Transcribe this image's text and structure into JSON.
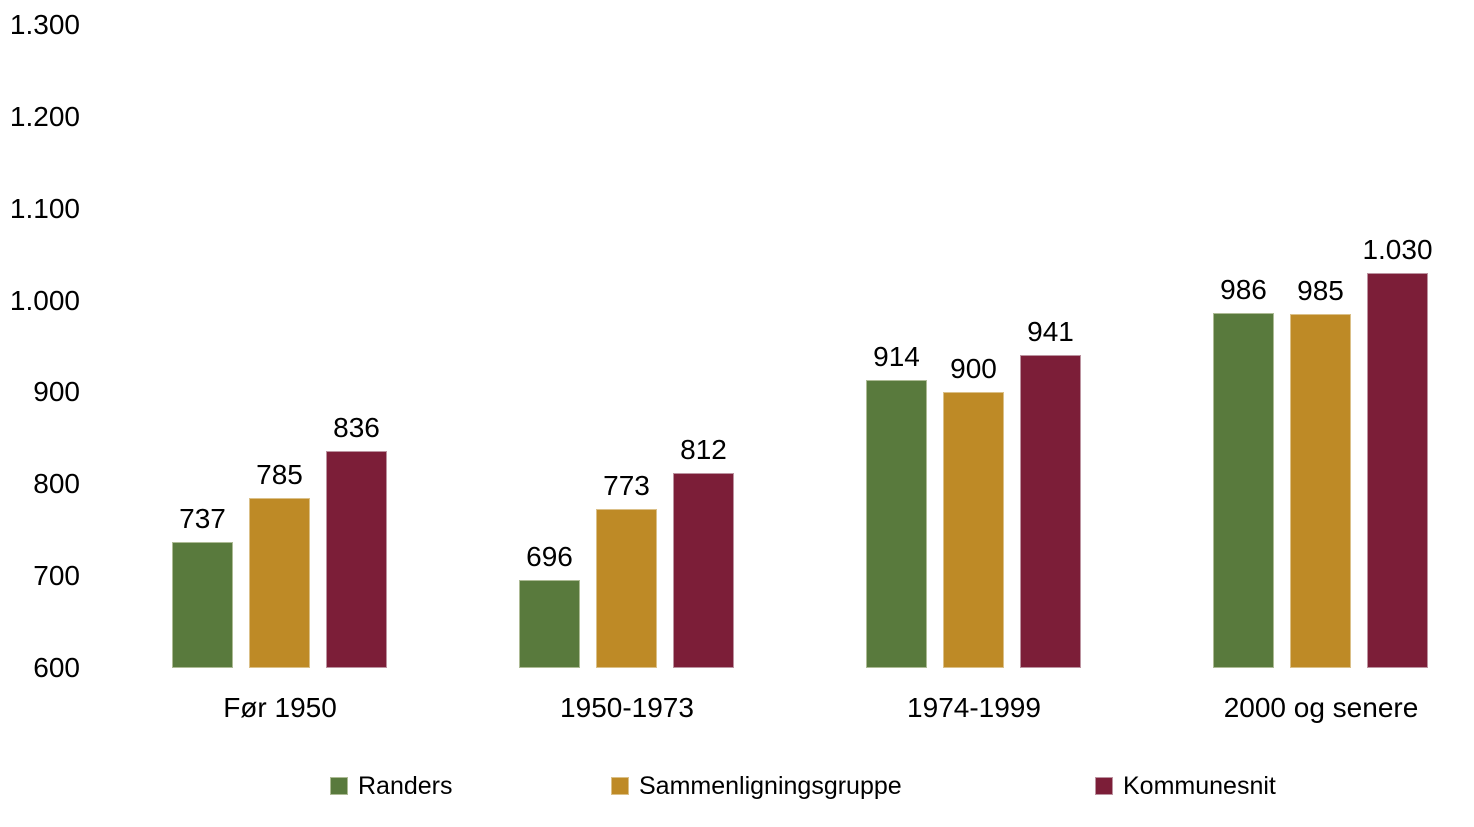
{
  "chart_data": {
    "type": "bar",
    "title": "",
    "xlabel": "",
    "ylabel": "",
    "categories": [
      "Før 1950",
      "1950-1973",
      "1974-1999",
      "2000 og senere"
    ],
    "series": [
      {
        "name": "Randers",
        "color": "#597A3D",
        "border_color": "#ADBB95",
        "values": [
          737,
          696,
          914,
          986
        ],
        "labels": [
          "737",
          "696",
          "914",
          "986"
        ]
      },
      {
        "name": "Sammenligningsgruppe",
        "color": "#BE8A26",
        "border_color": "#DBC088",
        "values": [
          785,
          773,
          900,
          985
        ],
        "labels": [
          "785",
          "773",
          "900",
          "985"
        ]
      },
      {
        "name": "Kommunesnit",
        "color": "#7C1E38",
        "border_color": "#BC93A0",
        "values": [
          836,
          812,
          941,
          1030
        ],
        "labels": [
          "836",
          "812",
          "941",
          "1.030"
        ]
      }
    ],
    "y_axis": {
      "min": 600,
      "max": 1300,
      "tick_step": 100,
      "tick_labels": [
        "600",
        "700",
        "800",
        "900",
        "1.000",
        "1.100",
        "1.200",
        "1.300"
      ]
    },
    "grid": false,
    "legend_position": "bottom",
    "text_color": "#000000",
    "background_color": "#FFFFFF"
  }
}
